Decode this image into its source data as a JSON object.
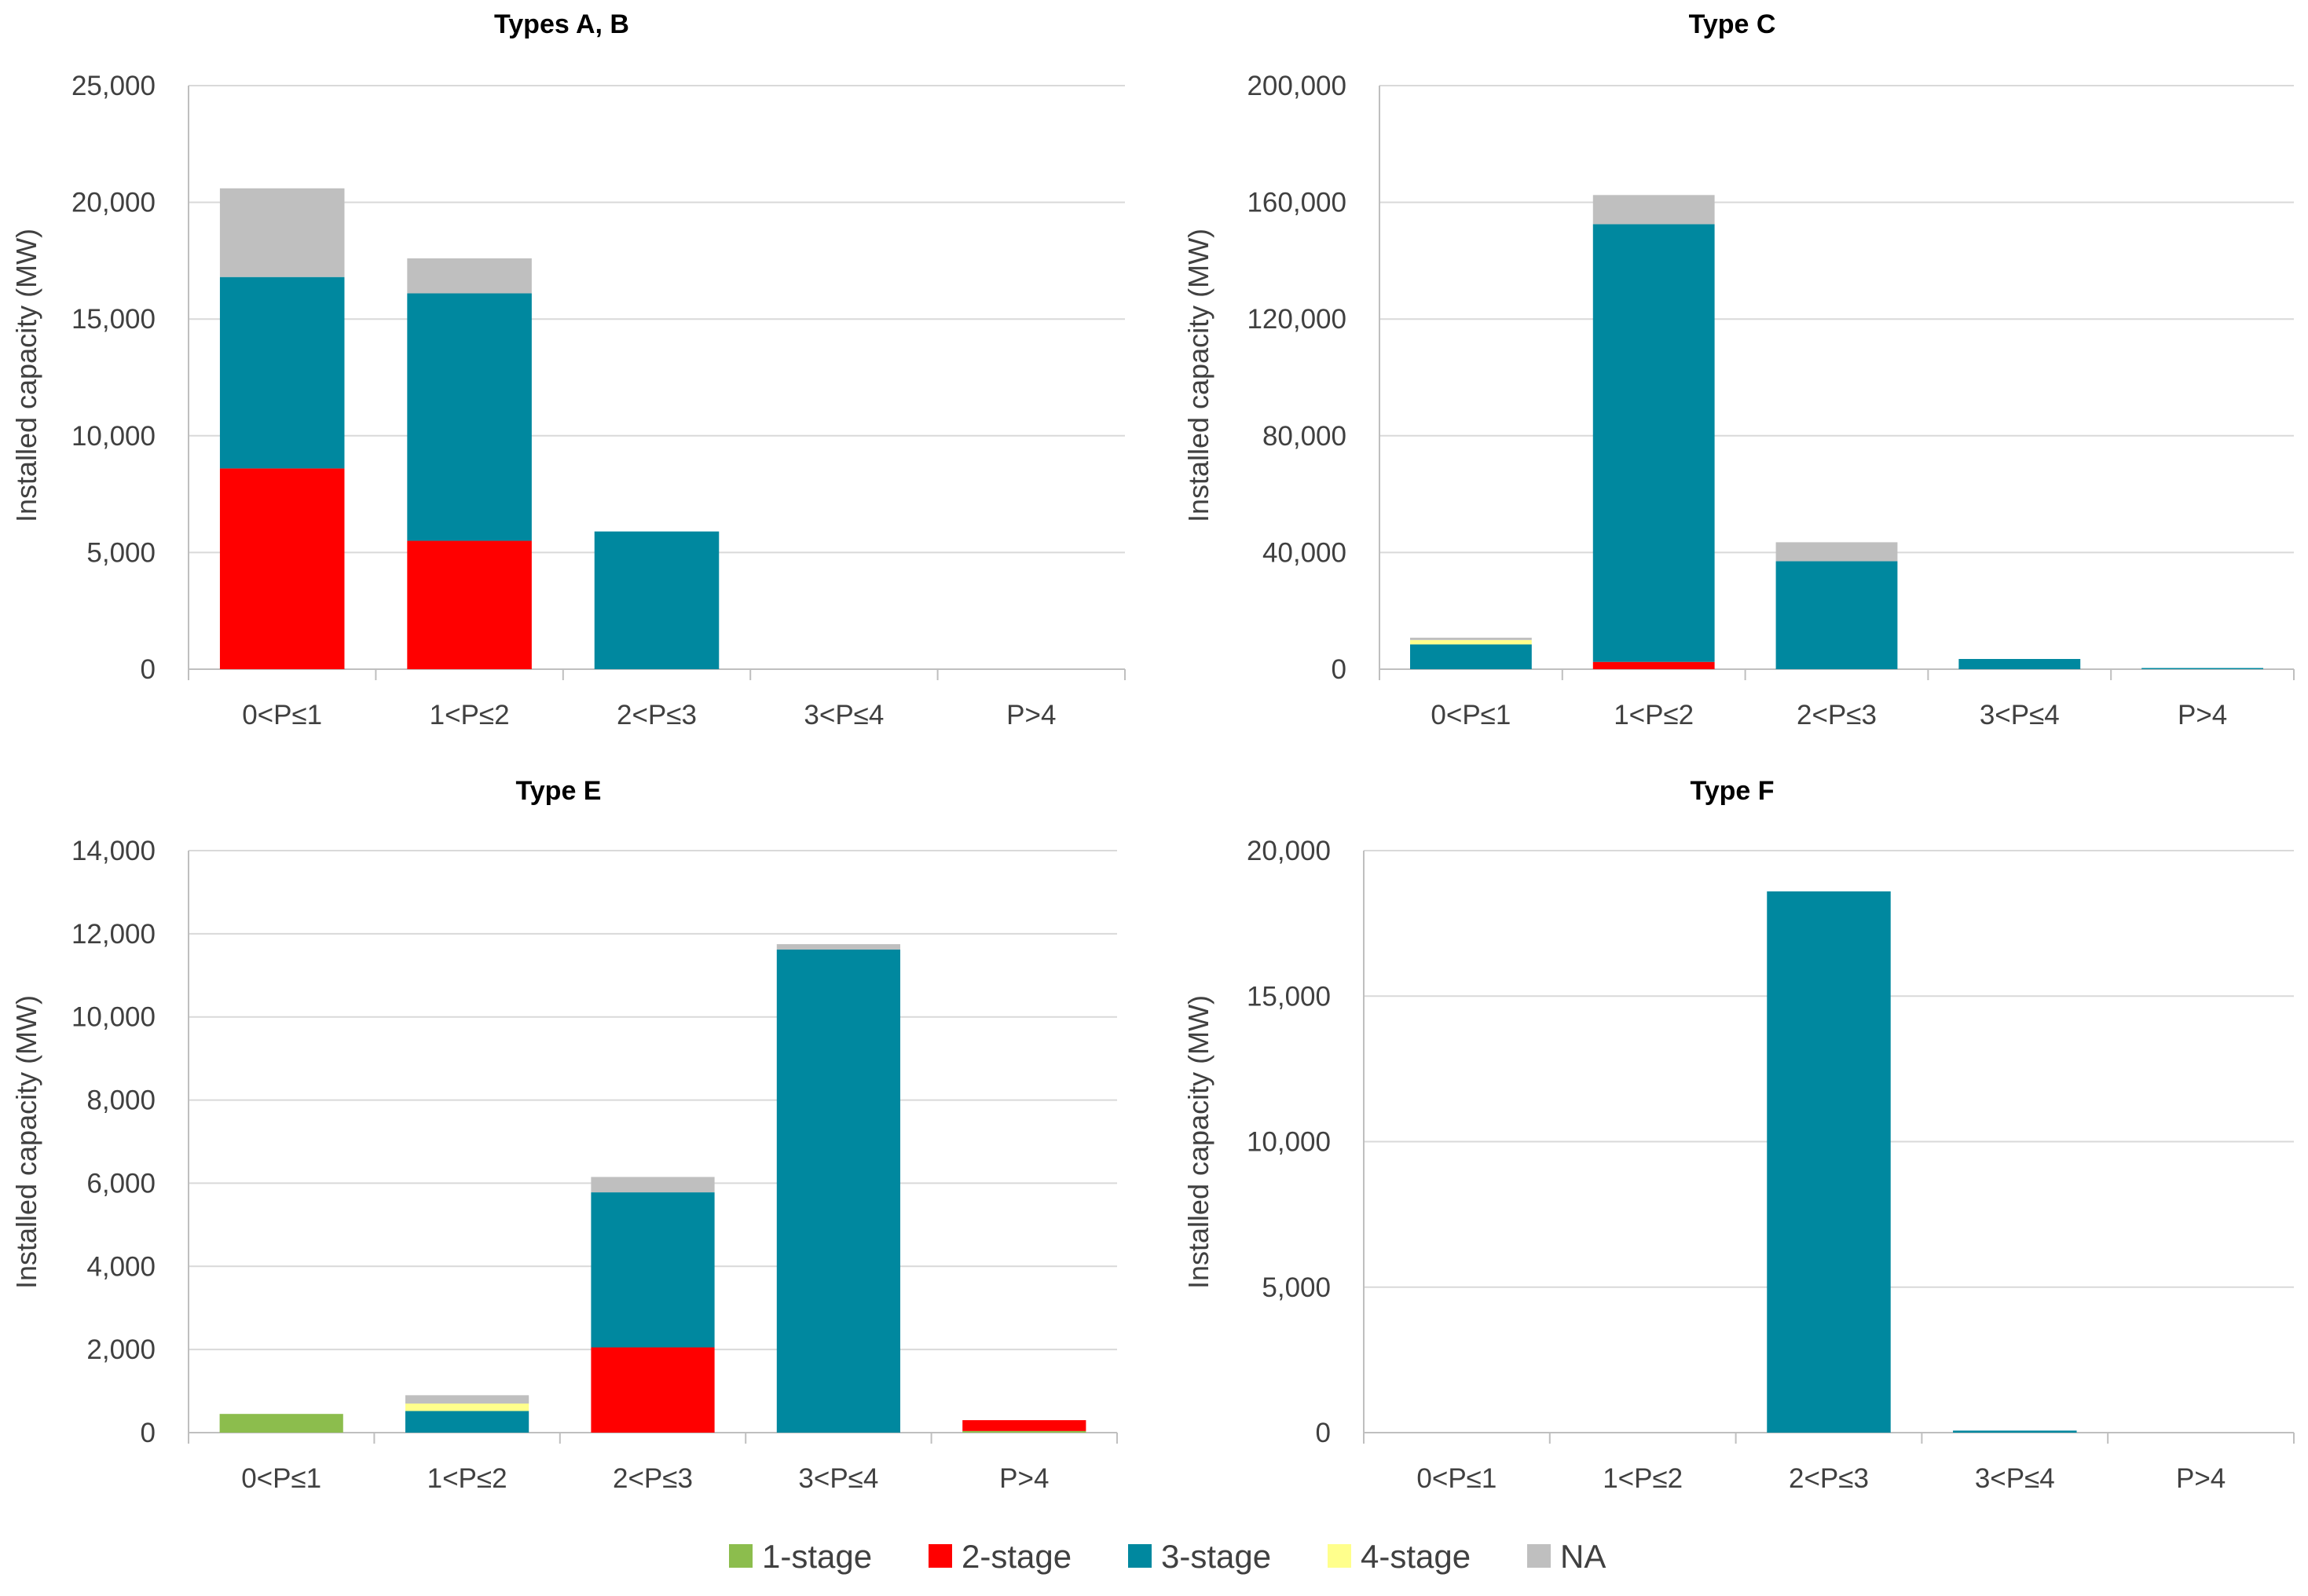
{
  "colors": {
    "1-stage": "#8cbd4d",
    "2-stage": "#ff0000",
    "3-stage": "#00889f",
    "4-stage": "#ffff8c",
    "NA": "#bfbfbf"
  },
  "legend": [
    "1-stage",
    "2-stage",
    "3-stage",
    "4-stage",
    "NA"
  ],
  "chart_data": [
    {
      "type": "bar",
      "stacked": true,
      "title": "Types A, B",
      "ylabel": "Installed capacity (MW)",
      "ylim": [
        0,
        25000
      ],
      "yticks": [
        0,
        5000,
        10000,
        15000,
        20000,
        25000
      ],
      "ytick_labels": [
        "0",
        "5,000",
        "10,000",
        "15,000",
        "20,000",
        "25,000"
      ],
      "grid": true,
      "categories": [
        "0<P≤1",
        "1<P≤2",
        "2<P≤3",
        "3<P≤4",
        "P>4"
      ],
      "series": [
        {
          "name": "1-stage",
          "values": [
            0,
            0,
            0,
            0,
            0
          ]
        },
        {
          "name": "2-stage",
          "values": [
            8600,
            5500,
            0,
            0,
            0
          ]
        },
        {
          "name": "3-stage",
          "values": [
            8200,
            10600,
            5900,
            0,
            0
          ]
        },
        {
          "name": "4-stage",
          "values": [
            0,
            0,
            0,
            0,
            0
          ]
        },
        {
          "name": "NA",
          "values": [
            3800,
            1500,
            0,
            0,
            0
          ]
        }
      ]
    },
    {
      "type": "bar",
      "stacked": true,
      "title": "Type C",
      "ylabel": "Installed capacity (MW)",
      "ylim": [
        0,
        200000
      ],
      "yticks": [
        0,
        40000,
        80000,
        120000,
        160000,
        200000
      ],
      "ytick_labels": [
        "0",
        "40,000",
        "80,000",
        "120,000",
        "160,000",
        "200,000"
      ],
      "grid": true,
      "categories": [
        "0<P≤1",
        "1<P≤2",
        "2<P≤3",
        "3<P≤4",
        "P>4"
      ],
      "series": [
        {
          "name": "1-stage",
          "values": [
            0,
            0,
            0,
            0,
            0
          ]
        },
        {
          "name": "2-stage",
          "values": [
            0,
            2500,
            0,
            0,
            0
          ]
        },
        {
          "name": "3-stage",
          "values": [
            8500,
            150000,
            37000,
            3500,
            300
          ]
        },
        {
          "name": "4-stage",
          "values": [
            1500,
            0,
            0,
            0,
            0
          ]
        },
        {
          "name": "NA",
          "values": [
            800,
            10000,
            6500,
            0,
            0
          ]
        }
      ]
    },
    {
      "type": "bar",
      "stacked": true,
      "title": "Type E",
      "ylabel": "Installed capacity (MW)",
      "ylim": [
        0,
        14000
      ],
      "yticks": [
        0,
        2000,
        4000,
        6000,
        8000,
        10000,
        12000,
        14000
      ],
      "ytick_labels": [
        "0",
        "2,000",
        "4,000",
        "6,000",
        "8,000",
        "10,000",
        "12,000",
        "14,000"
      ],
      "grid": true,
      "categories": [
        "0<P≤1",
        "1<P≤2",
        "2<P≤3",
        "3<P≤4",
        "P>4"
      ],
      "series": [
        {
          "name": "1-stage",
          "values": [
            450,
            0,
            0,
            0,
            40
          ]
        },
        {
          "name": "2-stage",
          "values": [
            0,
            0,
            2050,
            0,
            260
          ]
        },
        {
          "name": "3-stage",
          "values": [
            0,
            520,
            3730,
            11620,
            0
          ]
        },
        {
          "name": "4-stage",
          "values": [
            0,
            180,
            0,
            0,
            0
          ]
        },
        {
          "name": "NA",
          "values": [
            0,
            200,
            370,
            130,
            0
          ]
        }
      ]
    },
    {
      "type": "bar",
      "stacked": true,
      "title": "Type F",
      "ylabel": "Installed capacity (MW)",
      "ylim": [
        0,
        20000
      ],
      "yticks": [
        0,
        5000,
        10000,
        15000,
        20000
      ],
      "ytick_labels": [
        "0",
        "5,000",
        "10,000",
        "15,000",
        "20,000"
      ],
      "grid": true,
      "categories": [
        "0<P≤1",
        "1<P≤2",
        "2<P≤3",
        "3<P≤4",
        "P>4"
      ],
      "series": [
        {
          "name": "1-stage",
          "values": [
            0,
            0,
            0,
            0,
            0
          ]
        },
        {
          "name": "2-stage",
          "values": [
            0,
            0,
            0,
            0,
            0
          ]
        },
        {
          "name": "3-stage",
          "values": [
            0,
            0,
            18600,
            70,
            0
          ]
        },
        {
          "name": "4-stage",
          "values": [
            0,
            0,
            0,
            0,
            0
          ]
        },
        {
          "name": "NA",
          "values": [
            0,
            0,
            0,
            0,
            0
          ]
        }
      ]
    }
  ]
}
